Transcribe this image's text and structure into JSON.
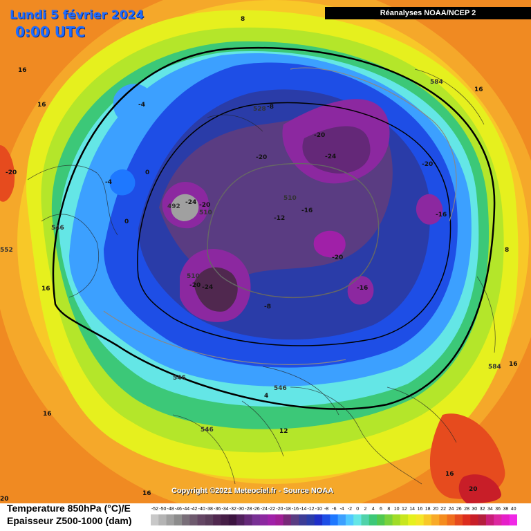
{
  "header": {
    "date": "Lundi 5 février 2024",
    "time": "0:00 UTC",
    "source": "Réanalyses NOAA/NCEP 2"
  },
  "footer": {
    "copyright": "Copyright ©2021 Meteociel.fr - Source NOAA",
    "legend_line1": "Temperature 850hPa (°C)/E",
    "legend_line2": "Epaisseur Z500-1000 (dam)"
  },
  "scale": {
    "ticks": [
      "-52",
      "-50",
      "-48",
      "-46",
      "-44",
      "-42",
      "-40",
      "-38",
      "-36",
      "-34",
      "-32",
      "-30",
      "-28",
      "-26",
      "-24",
      "-22",
      "-20",
      "-18",
      "-16",
      "-14",
      "-12",
      "-10",
      "-8",
      "-6",
      "-4",
      "-2",
      "0",
      "2",
      "4",
      "6",
      "8",
      "10",
      "12",
      "14",
      "16",
      "18",
      "20",
      "22",
      "24",
      "26",
      "28",
      "30",
      "32",
      "34",
      "36",
      "38",
      "40"
    ],
    "colors": [
      "#c8c8c8",
      "#b4b4b4",
      "#a0a0a0",
      "#8c8c8c",
      "#786e78",
      "#6e5a6e",
      "#644664",
      "#5a3c5a",
      "#50284f",
      "#461e46",
      "#3c1440",
      "#50205c",
      "#642878",
      "#783094",
      "#8c28a0",
      "#a020a8",
      "#a01e96",
      "#782878",
      "#5a3c82",
      "#3c3c96",
      "#2a3ca8",
      "#1e2ec8",
      "#1e4ee6",
      "#1e78ff",
      "#3ca0ff",
      "#50c8ff",
      "#64e6e6",
      "#50d2aa",
      "#3cc878",
      "#50c850",
      "#78d23c",
      "#a0dc28",
      "#c8e61e",
      "#e6f01e",
      "#f5e628",
      "#f8c828",
      "#f8aa28",
      "#f58c1e",
      "#f06e1e",
      "#e64b1e",
      "#dc2d1e",
      "#c81e28",
      "#b41e3c",
      "#c81e78",
      "#dc28a0",
      "#e61ec8",
      "#f028e6"
    ]
  },
  "map_labels": [
    {
      "text": "8"
    },
    {
      "text": "16"
    },
    {
      "text": "16"
    },
    {
      "text": "-4"
    },
    {
      "text": "-4"
    },
    {
      "text": "0"
    },
    {
      "text": "0"
    },
    {
      "text": "-20"
    },
    {
      "text": "528"
    },
    {
      "text": "-8"
    },
    {
      "text": "-20"
    },
    {
      "text": "-20"
    },
    {
      "text": "-24"
    },
    {
      "text": "492"
    },
    {
      "text": "-24"
    },
    {
      "text": "-20"
    },
    {
      "text": "510"
    },
    {
      "text": "510"
    },
    {
      "text": "-16"
    },
    {
      "text": "-12"
    },
    {
      "text": "-16"
    },
    {
      "text": "-20"
    },
    {
      "text": "510"
    },
    {
      "text": "-20"
    },
    {
      "text": "-24"
    },
    {
      "text": "-16"
    },
    {
      "text": "-8"
    },
    {
      "text": "546"
    },
    {
      "text": "546"
    },
    {
      "text": "16"
    },
    {
      "text": "8"
    },
    {
      "text": "584"
    },
    {
      "text": "16"
    },
    {
      "text": "552"
    },
    {
      "text": "16"
    },
    {
      "text": "546"
    },
    {
      "text": "12"
    },
    {
      "text": "4"
    },
    {
      "text": "546"
    },
    {
      "text": "16"
    },
    {
      "text": "16"
    },
    {
      "text": "20"
    },
    {
      "text": "20"
    },
    {
      "text": "584"
    },
    {
      "text": "16"
    },
    {
      "text": "-20"
    }
  ]
}
